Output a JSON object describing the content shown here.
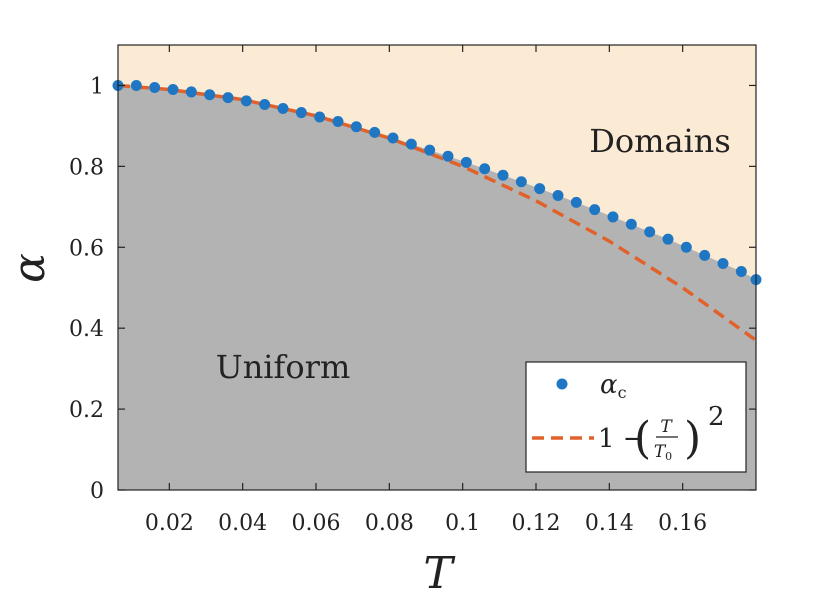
{
  "chart_data": {
    "type": "scatter",
    "xlabel": "T",
    "ylabel": "α",
    "xlim": [
      0.006,
      0.18
    ],
    "ylim": [
      0,
      1.1
    ],
    "xticks": [
      "0.02",
      "0.04",
      "0.06",
      "0.08",
      "0.1",
      "0.12",
      "0.14",
      "0.16"
    ],
    "yticks": [
      "0",
      "0.2",
      "0.4",
      "0.6",
      "0.8",
      "1"
    ],
    "x_tick_values": [
      0.02,
      0.04,
      0.06,
      0.08,
      0.1,
      0.12,
      0.14,
      0.16
    ],
    "y_tick_values": [
      0,
      0.2,
      0.4,
      0.6,
      0.8,
      1
    ],
    "grid": false,
    "legend_position": "bottom-right",
    "regions": [
      {
        "label": "Domains",
        "color": "#fcebd4",
        "side": "above-curve"
      },
      {
        "label": "Uniform",
        "color": "#b3b3b3",
        "side": "below-curve"
      }
    ],
    "series": [
      {
        "name": "α_c",
        "legend_main": "α",
        "legend_sub": "c",
        "kind": "markers",
        "color": "#1f77c4",
        "x": [
          0.006,
          0.011,
          0.016,
          0.021,
          0.026,
          0.031,
          0.036,
          0.041,
          0.046,
          0.051,
          0.056,
          0.061,
          0.066,
          0.071,
          0.076,
          0.081,
          0.086,
          0.091,
          0.096,
          0.101,
          0.106,
          0.111,
          0.116,
          0.121,
          0.126,
          0.131,
          0.136,
          0.141,
          0.146,
          0.151,
          0.156,
          0.161,
          0.166,
          0.171,
          0.176,
          0.18
        ],
        "y": [
          1.0,
          1.0,
          0.995,
          0.99,
          0.984,
          0.977,
          0.97,
          0.962,
          0.953,
          0.943,
          0.933,
          0.922,
          0.911,
          0.898,
          0.884,
          0.87,
          0.855,
          0.84,
          0.825,
          0.81,
          0.794,
          0.778,
          0.762,
          0.745,
          0.728,
          0.711,
          0.693,
          0.675,
          0.657,
          0.638,
          0.62,
          0.6,
          0.58,
          0.56,
          0.54,
          0.52
        ]
      },
      {
        "name": "1 − (T/T₀)²",
        "legend_lead": "1 −",
        "legend_num": "T",
        "legend_den": "T",
        "legend_den_sub": "0",
        "legend_exp": "2",
        "kind": "dashed-line",
        "color": "#e0622a",
        "x": [
          0.006,
          0.02,
          0.04,
          0.06,
          0.08,
          0.1,
          0.12,
          0.14,
          0.16,
          0.18
        ],
        "y": [
          1.0,
          0.99,
          0.965,
          0.925,
          0.87,
          0.8,
          0.715,
          0.615,
          0.5,
          0.37
        ]
      }
    ]
  }
}
